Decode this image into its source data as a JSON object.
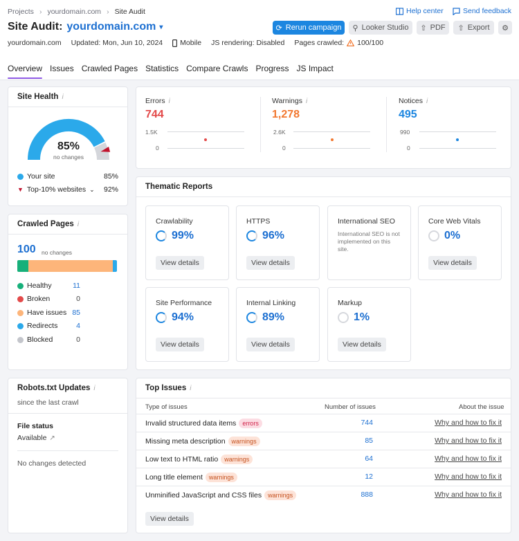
{
  "breadcrumb": [
    "Projects",
    "yourdomain.com",
    "Site Audit"
  ],
  "top_links": {
    "help": "Help center",
    "feedback": "Send feedback"
  },
  "title": {
    "prefix": "Site Audit:",
    "domain": "yourdomain.com"
  },
  "buttons": {
    "rerun": "Rerun campaign",
    "looker": "Looker Studio",
    "pdf": "PDF",
    "export": "Export"
  },
  "meta": {
    "domain": "yourdomain.com",
    "updated": "Updated: Mon, Jun 10, 2024",
    "device": "Mobile",
    "js": "JS rendering: Disabled",
    "pages_label": "Pages crawled:",
    "pages_value": "100/100"
  },
  "tabs": [
    "Overview",
    "Issues",
    "Crawled Pages",
    "Statistics",
    "Compare Crawls",
    "Progress",
    "JS Impact"
  ],
  "site_health": {
    "title": "Site Health",
    "score": "85%",
    "score_value": 85,
    "change": "no changes",
    "your_site_label": "Your site",
    "your_site_value": "85%",
    "top_label": "Top-10% websites",
    "top_value": "92%",
    "colors": {
      "your": "#2ba9ea",
      "top": "#c1132e",
      "rest": "#d4d6db"
    }
  },
  "crawled_pages": {
    "title": "Crawled Pages",
    "total": "100",
    "change": "no changes",
    "items": [
      {
        "label": "Healthy",
        "value": "11",
        "color": "#17b07a",
        "share": 11
      },
      {
        "label": "Broken",
        "value": "0",
        "color": "#e34a4a",
        "share": 0
      },
      {
        "label": "Have issues",
        "value": "85",
        "color": "#fdb57a",
        "share": 85
      },
      {
        "label": "Redirects",
        "value": "4",
        "color": "#2ba9ea",
        "share": 4
      },
      {
        "label": "Blocked",
        "value": "0",
        "color": "#c3c5cb",
        "share": 0
      }
    ]
  },
  "robots": {
    "title": "Robots.txt Updates",
    "since": "since the last crawl",
    "file_status_label": "File status",
    "file_status_value": "Available",
    "no_changes": "No changes detected"
  },
  "stats": [
    {
      "label": "Errors",
      "value": "744",
      "max": "1.5K",
      "min": "0",
      "color": "#e34a4a"
    },
    {
      "label": "Warnings",
      "value": "1,278",
      "max": "2.6K",
      "min": "0",
      "color": "#f27830"
    },
    {
      "label": "Notices",
      "value": "495",
      "max": "990",
      "min": "0",
      "color": "#1c86e0"
    }
  ],
  "thematic": {
    "title": "Thematic Reports",
    "view_label": "View details",
    "cards": [
      {
        "name": "Crawlability",
        "value": "99%"
      },
      {
        "name": "HTTPS",
        "value": "96%"
      },
      {
        "name": "International SEO",
        "note": "International SEO is not implemented on this site."
      },
      {
        "name": "Core Web Vitals",
        "value": "0%"
      },
      {
        "name": "Site Performance",
        "value": "94%"
      },
      {
        "name": "Internal Linking",
        "value": "89%"
      },
      {
        "name": "Markup",
        "value": "1%"
      }
    ]
  },
  "top_issues": {
    "title": "Top Issues",
    "columns": [
      "Type of issues",
      "Number of issues",
      "About the issue"
    ],
    "fix_label": "Why and how to fix it",
    "view_label": "View details",
    "rows": [
      {
        "name": "Invalid structured data items",
        "badge": "errors",
        "count": "744"
      },
      {
        "name": "Missing meta description",
        "badge": "warnings",
        "count": "85"
      },
      {
        "name": "Low text to HTML ratio",
        "badge": "warnings",
        "count": "64"
      },
      {
        "name": "Long title element",
        "badge": "warnings",
        "count": "12"
      },
      {
        "name": "Unminified JavaScript and CSS files",
        "badge": "warnings",
        "count": "888"
      }
    ]
  }
}
